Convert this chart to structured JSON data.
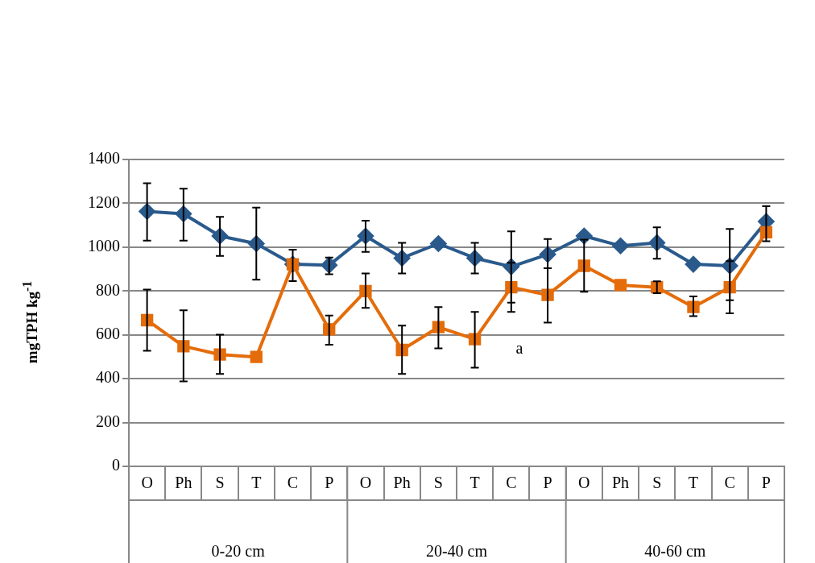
{
  "chart_data": {
    "type": "line",
    "ylabel": "mgTPH kg$^{-1}$",
    "categories": [
      "O",
      "Ph",
      "S",
      "T",
      "C",
      "P",
      "O",
      "Ph",
      "S",
      "T",
      "C",
      "P",
      "O",
      "Ph",
      "S",
      "T",
      "C",
      "P"
    ],
    "series": [
      {
        "color": "#2a5a8c",
        "marker": "diamond",
        "values": [
          1163,
          1152,
          1051,
          1016,
          922,
          918,
          1051,
          950,
          1016,
          950,
          911,
          967,
          1051,
          1006,
          1020,
          922,
          915,
          1117
        ],
        "errors": [
          [
            1030,
            1292
          ],
          [
            1030,
            1267
          ],
          [
            960,
            1138
          ],
          [
            852,
            1180
          ],
          [
            845,
            988
          ],
          [
            876,
            953
          ],
          [
            978,
            1121
          ],
          [
            880,
            1020
          ],
          null,
          [
            880,
            1020
          ],
          [
            747,
            1072
          ],
          [
            904,
            1037
          ],
          null,
          null,
          [
            947,
            1090
          ],
          null,
          [
            758,
            1083
          ],
          [
            1027,
            1187
          ]
        ]
      },
      {
        "color": "#e46c0a",
        "marker": "square",
        "values": [
          667,
          548,
          510,
          499,
          922,
          625,
          800,
          531,
          635,
          580,
          817,
          782,
          915,
          827,
          817,
          727,
          817,
          1068
        ],
        "errors": [
          [
            527,
            807
          ],
          [
            388,
            712
          ],
          [
            422,
            601
          ],
          null,
          null,
          [
            555,
            688
          ],
          [
            723,
            880
          ],
          [
            422,
            642
          ],
          [
            538,
            727
          ],
          [
            450,
            705
          ],
          [
            705,
            929
          ],
          [
            656,
            904
          ],
          [
            796,
            1034
          ],
          null,
          [
            790,
            844
          ],
          [
            685,
            775
          ],
          [
            698,
            936
          ],
          null
        ]
      }
    ],
    "ylim": [
      0,
      1400
    ],
    "yticks": [
      0,
      200,
      400,
      600,
      800,
      1000,
      1200,
      1400
    ],
    "grid": "y",
    "line_style": "solid",
    "annotations": [
      "a",
      "0-20 cm",
      "20-40 cm",
      "40-60 cm"
    ]
  }
}
